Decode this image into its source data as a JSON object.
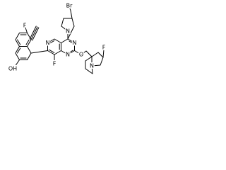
{
  "atom_labels": [
    "Br",
    "N",
    "N",
    "N",
    "N",
    "F",
    "O",
    "F",
    "N",
    "F",
    "OH"
  ]
}
